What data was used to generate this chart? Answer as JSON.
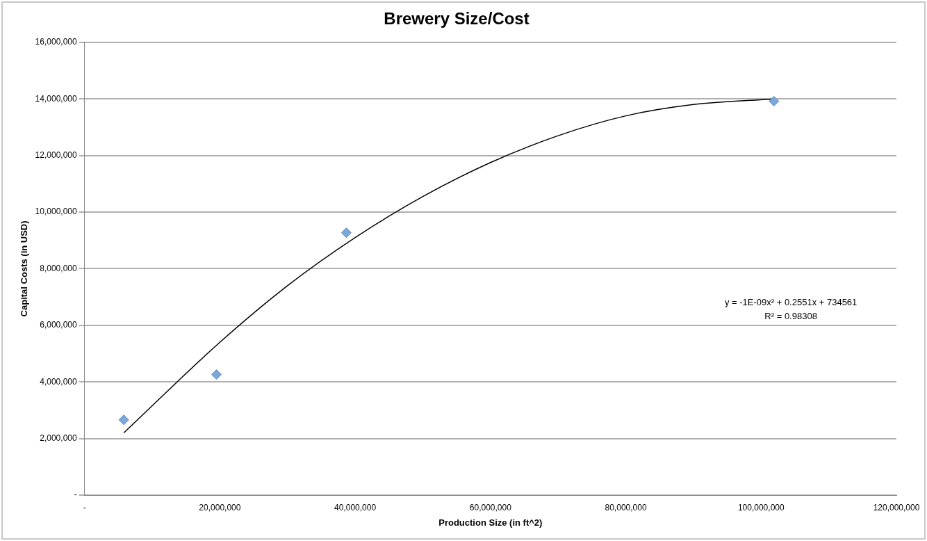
{
  "chart_data": {
    "type": "scatter",
    "title": "Brewery Size/Cost",
    "xlabel": "Production Size (in ft^2)",
    "ylabel": "Capital Costs (in USD)",
    "xlim": [
      0,
      120000000
    ],
    "ylim": [
      0,
      16000000
    ],
    "xticks": [
      {
        "value": 0,
        "label": "-"
      },
      {
        "value": 20000000,
        "label": "20,000,000"
      },
      {
        "value": 40000000,
        "label": "40,000,000"
      },
      {
        "value": 60000000,
        "label": "60,000,000"
      },
      {
        "value": 80000000,
        "label": "80,000,000"
      },
      {
        "value": 100000000,
        "label": "100,000,000"
      },
      {
        "value": 120000000,
        "label": "120,000,000"
      }
    ],
    "yticks": [
      {
        "value": 0,
        "label": "-"
      },
      {
        "value": 2000000,
        "label": "2,000,000"
      },
      {
        "value": 4000000,
        "label": "4,000,000"
      },
      {
        "value": 6000000,
        "label": "6,000,000"
      },
      {
        "value": 8000000,
        "label": "8,000,000"
      },
      {
        "value": 10000000,
        "label": "10,000,000"
      },
      {
        "value": 12000000,
        "label": "12,000,000"
      },
      {
        "value": 14000000,
        "label": "14,000,000"
      },
      {
        "value": 16000000,
        "label": "16,000,000"
      }
    ],
    "grid": "y",
    "legend": false,
    "series": [
      {
        "type": "scatter",
        "color": "#7ba7da",
        "marker": "diamond",
        "x": [
          5800000,
          19500000,
          38700000,
          101900000
        ],
        "values": [
          2660000,
          4260000,
          9270000,
          13920000
        ]
      },
      {
        "type": "line",
        "color": "#000000",
        "marker": "none",
        "x": [
          5800000,
          20000000,
          30000000,
          40000000,
          50000000,
          60000000,
          70000000,
          80000000,
          90000000,
          101900000
        ],
        "values": [
          2200000,
          5400000,
          7400000,
          9100000,
          10550000,
          11750000,
          12700000,
          13400000,
          13800000,
          14000000
        ]
      }
    ],
    "annotations": [
      "y = -1E-09x² + 0.2551x + 734561",
      "R² = 0.98308"
    ]
  }
}
